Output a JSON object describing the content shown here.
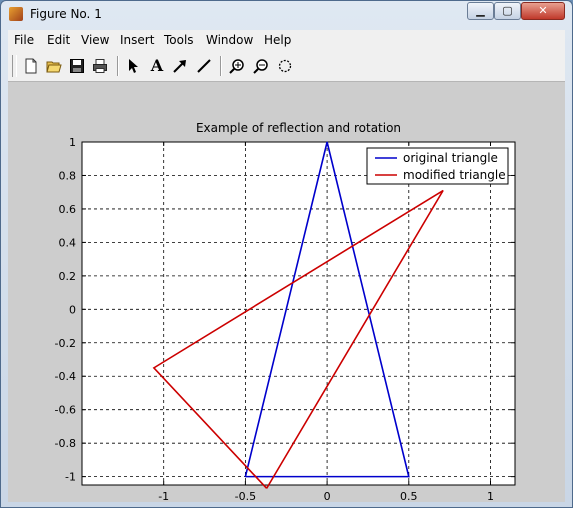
{
  "window": {
    "title": "Figure No. 1",
    "close_glyph": "✕",
    "min_glyph": "▁",
    "max_glyph": "▢"
  },
  "menu": [
    "File",
    "Edit",
    "View",
    "Insert",
    "Tools",
    "Window",
    "Help"
  ],
  "toolbar": {
    "icons": [
      "new-figure-icon",
      "open-file-icon",
      "save-icon",
      "print-icon",
      "select-arrow-icon",
      "insert-text-icon",
      "insert-arrow-icon",
      "insert-line-icon",
      "zoom-in-icon",
      "zoom-out-icon",
      "rotate-3d-icon"
    ],
    "text_tool_glyph": "A"
  },
  "chart_data": {
    "type": "line",
    "title": "Example of reflection and rotation",
    "xlabel": "",
    "ylabel": "",
    "xlim": [
      -1.5,
      1.15
    ],
    "ylim": [
      -1.05,
      1.0
    ],
    "xticks": [
      -1,
      -0.5,
      0,
      0.5,
      1
    ],
    "yticks": [
      1,
      0.8,
      0.6,
      0.4,
      0.2,
      0,
      -0.2,
      -0.4,
      -0.6,
      -0.8,
      -1
    ],
    "xtick_labels": [
      "-1",
      "-0.5",
      "0",
      "0.5",
      "1"
    ],
    "ytick_labels": [
      "1",
      "0.8",
      "0.6",
      "0.4",
      "0.2",
      "0",
      "-0.2",
      "-0.4",
      "-0.6",
      "-0.8",
      "-1"
    ],
    "grid": true,
    "legend_position": "top-right",
    "series": [
      {
        "name": "original triangle",
        "color": "#0000cc",
        "x": [
          -0.5,
          0.5,
          0,
          -0.5
        ],
        "y": [
          -1,
          -1,
          1,
          -1
        ]
      },
      {
        "name": "modified triangle",
        "color": "#cc0000",
        "x": [
          -0.37,
          0.71,
          -1.06,
          -0.37
        ],
        "y": [
          -1.07,
          0.71,
          -0.35,
          -1.07
        ]
      }
    ]
  }
}
